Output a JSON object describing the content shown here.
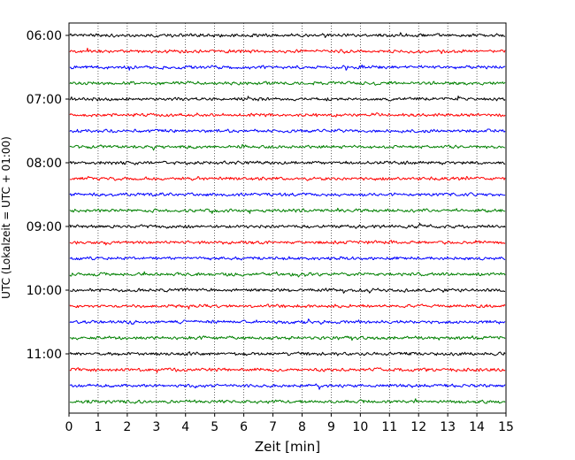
{
  "chart_data": {
    "type": "line",
    "xlabel": "Zeit  [min]",
    "ylabel": "UTC (Lokalzeit = UTC + 01:00)",
    "xlim": [
      0,
      15
    ],
    "x_ticks": [
      "0",
      "1",
      "2",
      "3",
      "4",
      "5",
      "6",
      "7",
      "8",
      "9",
      "10",
      "11",
      "12",
      "13",
      "14",
      "15"
    ],
    "y_ticks": [
      "06:00",
      "07:00",
      "08:00",
      "09:00",
      "10:00",
      "11:00"
    ],
    "grid": "vertical dotted",
    "trace_interval_minutes": 15,
    "traces": [
      {
        "start": "06:00",
        "color": "#000000"
      },
      {
        "start": "06:15",
        "color": "#ff0000"
      },
      {
        "start": "06:30",
        "color": "#0000ff"
      },
      {
        "start": "06:45",
        "color": "#008000"
      },
      {
        "start": "07:00",
        "color": "#000000"
      },
      {
        "start": "07:15",
        "color": "#ff0000"
      },
      {
        "start": "07:30",
        "color": "#0000ff"
      },
      {
        "start": "07:45",
        "color": "#008000"
      },
      {
        "start": "08:00",
        "color": "#000000"
      },
      {
        "start": "08:15",
        "color": "#ff0000"
      },
      {
        "start": "08:30",
        "color": "#0000ff"
      },
      {
        "start": "08:45",
        "color": "#008000"
      },
      {
        "start": "09:00",
        "color": "#000000"
      },
      {
        "start": "09:15",
        "color": "#ff0000"
      },
      {
        "start": "09:30",
        "color": "#0000ff"
      },
      {
        "start": "09:45",
        "color": "#008000"
      },
      {
        "start": "10:00",
        "color": "#000000"
      },
      {
        "start": "10:15",
        "color": "#ff0000"
      },
      {
        "start": "10:30",
        "color": "#0000ff"
      },
      {
        "start": "10:45",
        "color": "#008000"
      },
      {
        "start": "11:00",
        "color": "#000000"
      },
      {
        "start": "11:15",
        "color": "#ff0000"
      },
      {
        "start": "11:30",
        "color": "#0000ff"
      },
      {
        "start": "11:45",
        "color": "#008000"
      }
    ]
  }
}
